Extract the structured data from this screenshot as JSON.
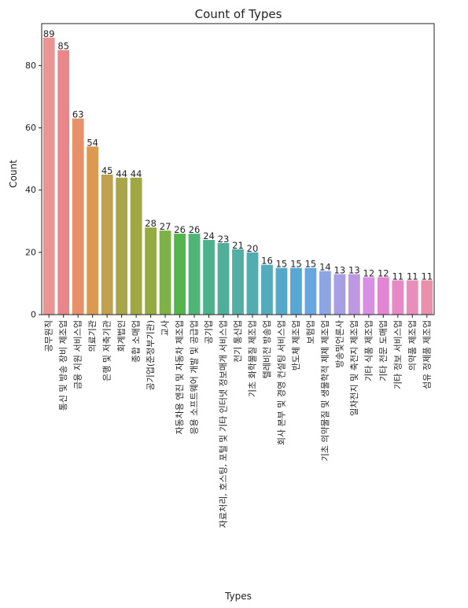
{
  "chart_data": {
    "type": "bar",
    "title": "Count of Types",
    "xlabel": "Types",
    "ylabel": "Count",
    "ylim": [
      0,
      93.5
    ],
    "yticks": [
      "0",
      "20",
      "40",
      "60",
      "80"
    ],
    "grid": false,
    "legend": "none",
    "categories": [
      "공무원직",
      "통신 및 방송 장비 제조업",
      "금융 지원 서비스업",
      "의료기관",
      "은행 및 저축기관",
      "회계법인",
      "종합 소매업",
      "공기업(준정부기관)",
      "교사",
      "자동차용 엔진 및 자동차 제조업",
      "응용 소프트웨어 개발 및 공급업",
      "공기업",
      "자료처리, 호스팅, 포털 및 기타 인터넷 정보매개 서비스업",
      "전기 통신업",
      "기초 화학물질 제조업",
      "텔레비전 방송업",
      "회사 본부 및 경영 컨설팅 서비스업",
      "반도체 제조업",
      "보험업",
      "기초 의약물질 및 생물학적 제제 제조업",
      "방송및언론사",
      "일차전지 및 축전지 제조업",
      "기타 식품 제조업",
      "기타 전문 도매업",
      "기타 정보 서비스업",
      "의약품 제조업",
      "섬유 정제품 제조업"
    ],
    "values": [
      89,
      85,
      63,
      54,
      45,
      44,
      44,
      28,
      27,
      26,
      26,
      24,
      23,
      21,
      20,
      16,
      15,
      15,
      15,
      14,
      13,
      13,
      12,
      12,
      11,
      11,
      11
    ],
    "colors": [
      "#ea9593",
      "#e9868a",
      "#e6916a",
      "#dc9952",
      "#c0a04f",
      "#a9a54b",
      "#a1a744",
      "#94ab44",
      "#7eb247",
      "#55b54d",
      "#4fb475",
      "#4fb18c",
      "#50af9b",
      "#50aea5",
      "#51adaf",
      "#53abbb",
      "#55a9c8",
      "#57a8d4",
      "#69a6df",
      "#8da5e2",
      "#a69fe3",
      "#bd98e1",
      "#d68fe2",
      "#e584d3",
      "#e889c6",
      "#e98dbb",
      "#ea90ad"
    ]
  }
}
